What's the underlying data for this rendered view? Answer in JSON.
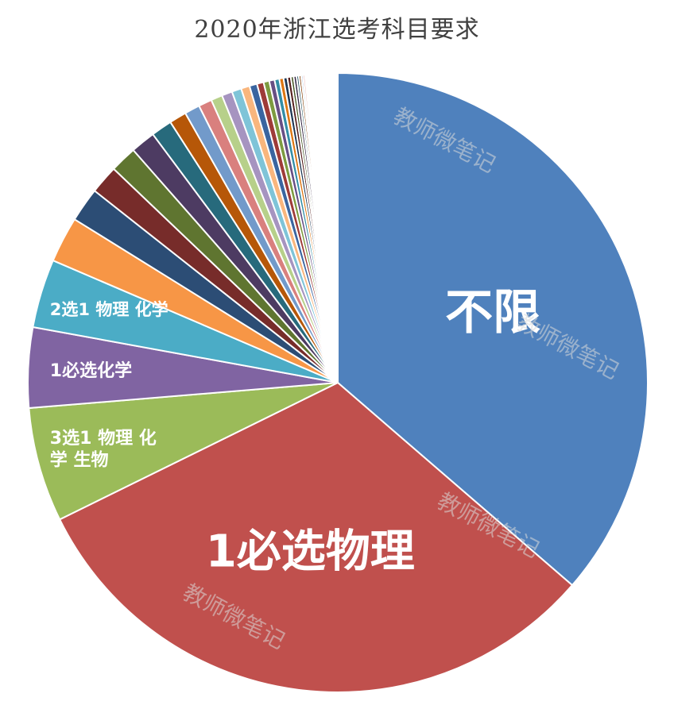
{
  "chart_data": {
    "type": "pie",
    "title": "2020年浙江选考科目要求",
    "start_angle_deg": 0,
    "direction": "clockwise",
    "slices": [
      {
        "label": "不限",
        "value": 36.5,
        "color": "#4f81bd"
      },
      {
        "label": "1必选物理",
        "value": 31.5,
        "color": "#c0504d"
      },
      {
        "label": "3选1 物理 化学 生物",
        "value": 6.0,
        "color": "#9bbb59"
      },
      {
        "label": "1必选化学",
        "value": 4.2,
        "color": "#8064a2"
      },
      {
        "label": "2选1 物理 化学",
        "value": 3.6,
        "color": "#4bacc6"
      },
      {
        "label": "",
        "value": 2.4,
        "color": "#f79646"
      },
      {
        "label": "",
        "value": 1.8,
        "color": "#2c4d75"
      },
      {
        "label": "",
        "value": 1.5,
        "color": "#772c2a"
      },
      {
        "label": "",
        "value": 1.4,
        "color": "#5f7530"
      },
      {
        "label": "",
        "value": 1.3,
        "color": "#4d3b62"
      },
      {
        "label": "",
        "value": 1.1,
        "color": "#276a7c"
      },
      {
        "label": "",
        "value": 0.9,
        "color": "#b65708"
      },
      {
        "label": "",
        "value": 0.8,
        "color": "#729aca"
      },
      {
        "label": "",
        "value": 0.7,
        "color": "#d9807e"
      },
      {
        "label": "",
        "value": 0.6,
        "color": "#b7d08a"
      },
      {
        "label": "",
        "value": 0.55,
        "color": "#a694c0"
      },
      {
        "label": "",
        "value": 0.5,
        "color": "#7fc4d8"
      },
      {
        "label": "",
        "value": 0.45,
        "color": "#f9b67d"
      },
      {
        "label": "",
        "value": 0.4,
        "color": "#3a65a0"
      },
      {
        "label": "",
        "value": 0.35,
        "color": "#9e3b38"
      },
      {
        "label": "",
        "value": 0.3,
        "color": "#7d9b40"
      },
      {
        "label": "",
        "value": 0.28,
        "color": "#674f84"
      },
      {
        "label": "",
        "value": 0.25,
        "color": "#338ea6"
      },
      {
        "label": "",
        "value": 0.22,
        "color": "#dd7612"
      },
      {
        "label": "",
        "value": 0.2,
        "color": "#1f3753"
      },
      {
        "label": "",
        "value": 0.18,
        "color": "#561f1e"
      },
      {
        "label": "",
        "value": 0.15,
        "color": "#445422"
      },
      {
        "label": "",
        "value": 0.15,
        "color": "#372a46"
      },
      {
        "label": "",
        "value": 0.12,
        "color": "#1b4b58"
      },
      {
        "label": "",
        "value": 0.12,
        "color": "#823e05"
      },
      {
        "label": "",
        "value": 0.1,
        "color": "#95b2d8"
      },
      {
        "label": "",
        "value": 0.1,
        "color": "#e5a9a7"
      }
    ],
    "gap": {
      "value": 1.7,
      "color": "#ffffff"
    },
    "watermark": "教师微笔记"
  }
}
